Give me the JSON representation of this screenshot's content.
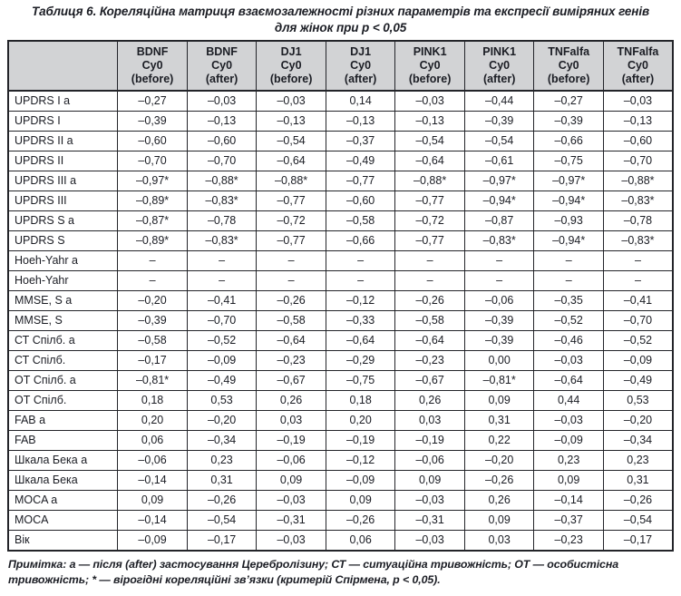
{
  "title": "Таблиця 6. Кореляційна матриця взаємозалежності різних параметрів та експресії виміряних генів\nдля жінок при р < 0,05",
  "table": {
    "corner_label": "",
    "col_headers": [
      "BDNF\nCy0\n(before)",
      "BDNF\nCy0\n(after)",
      "DJ1\nCy0\n(before)",
      "DJ1\nCy0\n(after)",
      "PINK1\nCy0\n(before)",
      "PINK1\nCy0\n(after)",
      "TNFalfa\nCy0\n(before)",
      "TNFalfa\nCy0\n(after)"
    ],
    "rows": [
      {
        "label": "UPDRS I а",
        "values": [
          "–0,27",
          "–0,03",
          "–0,03",
          "0,14",
          "–0,03",
          "–0,44",
          "–0,27",
          "–0,03"
        ]
      },
      {
        "label": "UPDRS I",
        "values": [
          "–0,39",
          "–0,13",
          "–0,13",
          "–0,13",
          "–0,13",
          "–0,39",
          "–0,39",
          "–0,13"
        ]
      },
      {
        "label": "UPDRS II а",
        "values": [
          "–0,60",
          "–0,60",
          "–0,54",
          "–0,37",
          "–0,54",
          "–0,54",
          "–0,66",
          "–0,60"
        ]
      },
      {
        "label": "UPDRS II",
        "values": [
          "–0,70",
          "–0,70",
          "–0,64",
          "–0,49",
          "–0,64",
          "–0,61",
          "–0,75",
          "–0,70"
        ]
      },
      {
        "label": "UPDRS III а",
        "values": [
          "–0,97*",
          "–0,88*",
          "–0,88*",
          "–0,77",
          "–0,88*",
          "–0,97*",
          "–0,97*",
          "–0,88*"
        ]
      },
      {
        "label": "UPDRS III",
        "values": [
          "–0,89*",
          "–0,83*",
          "–0,77",
          "–0,60",
          "–0,77",
          "–0,94*",
          "–0,94*",
          "–0,83*"
        ]
      },
      {
        "label": "UPDRS S а",
        "values": [
          "–0,87*",
          "–0,78",
          "–0,72",
          "–0,58",
          "–0,72",
          "–0,87",
          "–0,93",
          "–0,78"
        ]
      },
      {
        "label": "UPDRS S",
        "values": [
          "–0,89*",
          "–0,83*",
          "–0,77",
          "–0,66",
          "–0,77",
          "–0,83*",
          "–0,94*",
          "–0,83*"
        ]
      },
      {
        "label": "Hoeh-Yahr а",
        "values": [
          "–",
          "–",
          "–",
          "–",
          "–",
          "–",
          "–",
          "–"
        ]
      },
      {
        "label": "Hoeh-Yahr",
        "values": [
          "–",
          "–",
          "–",
          "–",
          "–",
          "–",
          "–",
          "–"
        ]
      },
      {
        "label": "MMSE, S а",
        "values": [
          "–0,20",
          "–0,41",
          "–0,26",
          "–0,12",
          "–0,26",
          "–0,06",
          "–0,35",
          "–0,41"
        ]
      },
      {
        "label": "MMSE, S",
        "values": [
          "–0,39",
          "–0,70",
          "–0,58",
          "–0,33",
          "–0,58",
          "–0,39",
          "–0,52",
          "–0,70"
        ]
      },
      {
        "label": "СТ Спілб. а",
        "values": [
          "–0,58",
          "–0,52",
          "–0,64",
          "–0,64",
          "–0,64",
          "–0,39",
          "–0,46",
          "–0,52"
        ]
      },
      {
        "label": "СТ Спілб.",
        "values": [
          "–0,17",
          "–0,09",
          "–0,23",
          "–0,29",
          "–0,23",
          "0,00",
          "–0,03",
          "–0,09"
        ]
      },
      {
        "label": "ОТ Спілб. а",
        "values": [
          "–0,81*",
          "–0,49",
          "–0,67",
          "–0,75",
          "–0,67",
          "–0,81*",
          "–0,64",
          "–0,49"
        ]
      },
      {
        "label": "ОТ Спілб.",
        "values": [
          "0,18",
          "0,53",
          "0,26",
          "0,18",
          "0,26",
          "0,09",
          "0,44",
          "0,53"
        ]
      },
      {
        "label": "FAB а",
        "values": [
          "0,20",
          "–0,20",
          "0,03",
          "0,20",
          "0,03",
          "0,31",
          "–0,03",
          "–0,20"
        ]
      },
      {
        "label": "FAB",
        "values": [
          "0,06",
          "–0,34",
          "–0,19",
          "–0,19",
          "–0,19",
          "0,22",
          "–0,09",
          "–0,34"
        ]
      },
      {
        "label": "Шкала Бека а",
        "values": [
          "–0,06",
          "0,23",
          "–0,06",
          "–0,12",
          "–0,06",
          "–0,20",
          "0,23",
          "0,23"
        ]
      },
      {
        "label": "Шкала Бека",
        "values": [
          "–0,14",
          "0,31",
          "0,09",
          "–0,09",
          "0,09",
          "–0,26",
          "0,09",
          "0,31"
        ]
      },
      {
        "label": "MOCA а",
        "values": [
          "0,09",
          "–0,26",
          "–0,03",
          "0,09",
          "–0,03",
          "0,26",
          "–0,14",
          "–0,26"
        ]
      },
      {
        "label": "MOCA",
        "values": [
          "–0,14",
          "–0,54",
          "–0,31",
          "–0,26",
          "–0,31",
          "0,09",
          "–0,37",
          "–0,54"
        ]
      },
      {
        "label": "Вік",
        "values": [
          "–0,09",
          "–0,17",
          "–0,03",
          "0,06",
          "–0,03",
          "0,03",
          "–0,23",
          "–0,17"
        ]
      }
    ]
  },
  "note": "Примітка: а — після (after) застосування Церебролізину; СТ — ситуаційна тривожність; ОТ — особистісна тривожність; * — вірогідні кореляційні зв’язки (критерій Спірмена, р < 0,05)."
}
